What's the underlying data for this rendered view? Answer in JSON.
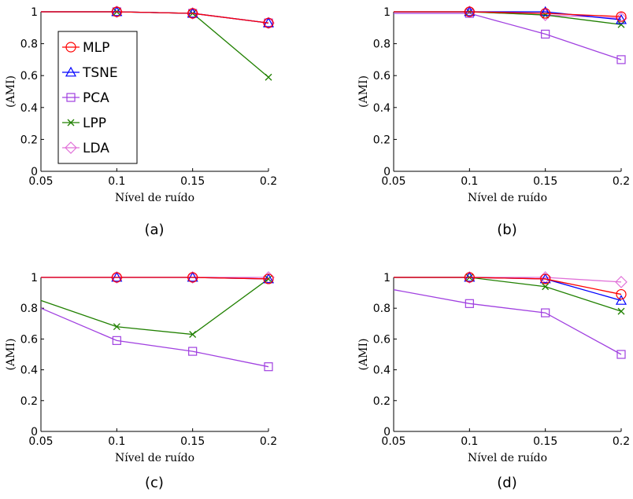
{
  "chart_data": [
    {
      "type": "line",
      "caption": "(a)",
      "xlabel": "Nível de ruído",
      "ylabel": "(AMI)",
      "x": [
        0.05,
        0.1,
        0.15,
        0.2
      ],
      "xticks": [
        "0.05",
        "0.1",
        "0.15",
        "0.2"
      ],
      "yticks": [
        "0",
        "0.2",
        "0.4",
        "0.6",
        "0.8",
        "1"
      ],
      "xlim": [
        0.05,
        0.2
      ],
      "ylim": [
        0,
        1
      ],
      "grid": false,
      "legend": "left",
      "series": [
        {
          "name": "MLP",
          "marker": "circle",
          "color": "#ff0000",
          "values": [
            1.0,
            1.0,
            0.99,
            0.93
          ]
        },
        {
          "name": "TSNE",
          "marker": "triangle",
          "color": "#0000ff",
          "values": [
            1.0,
            1.0,
            0.99,
            0.93
          ]
        },
        {
          "name": "PCA",
          "marker": "square",
          "color": "#a040e0",
          "values": [
            1.0,
            1.0,
            0.99,
            0.93
          ]
        },
        {
          "name": "LPP",
          "marker": "x",
          "color": "#208000",
          "values": [
            1.0,
            1.0,
            0.99,
            0.59
          ]
        },
        {
          "name": "LDA",
          "marker": "diamond",
          "color": "#e070d8",
          "values": [
            1.0,
            1.0,
            0.99,
            0.93
          ]
        }
      ]
    },
    {
      "type": "line",
      "caption": "(b)",
      "xlabel": "Nível de ruído",
      "ylabel": "(AMI)",
      "x": [
        0.05,
        0.1,
        0.15,
        0.2
      ],
      "xticks": [
        "0.05",
        "0.1",
        "0.15",
        "0.2"
      ],
      "yticks": [
        "0",
        "0.2",
        "0.4",
        "0.6",
        "0.8",
        "1"
      ],
      "xlim": [
        0.05,
        0.2
      ],
      "ylim": [
        0,
        1
      ],
      "grid": false,
      "series": [
        {
          "name": "MLP",
          "marker": "circle",
          "color": "#ff0000",
          "values": [
            1.0,
            1.0,
            0.99,
            0.97
          ]
        },
        {
          "name": "TSNE",
          "marker": "triangle",
          "color": "#0000ff",
          "values": [
            1.0,
            1.0,
            1.0,
            0.95
          ]
        },
        {
          "name": "PCA",
          "marker": "square",
          "color": "#a040e0",
          "values": [
            0.99,
            0.99,
            0.86,
            0.7
          ]
        },
        {
          "name": "LPP",
          "marker": "x",
          "color": "#208000",
          "values": [
            1.0,
            1.0,
            0.98,
            0.92
          ]
        },
        {
          "name": "LDA",
          "marker": "diamond",
          "color": "#e070d8",
          "values": [
            1.0,
            1.0,
            0.98,
            0.96
          ]
        }
      ]
    },
    {
      "type": "line",
      "caption": "(c)",
      "xlabel": "Nível de ruído",
      "ylabel": "(AMI)",
      "x": [
        0.05,
        0.1,
        0.15,
        0.2
      ],
      "xticks": [
        "0.05",
        "0.1",
        "0.15",
        "0.2"
      ],
      "yticks": [
        "0",
        "0.2",
        "0.4",
        "0.6",
        "0.8",
        "1"
      ],
      "xlim": [
        0.05,
        0.2
      ],
      "ylim": [
        0,
        1
      ],
      "grid": false,
      "series": [
        {
          "name": "MLP",
          "marker": "circle",
          "color": "#ff0000",
          "values": [
            1.0,
            1.0,
            1.0,
            0.99
          ]
        },
        {
          "name": "TSNE",
          "marker": "triangle",
          "color": "#0000ff",
          "values": [
            1.0,
            1.0,
            1.0,
            0.99
          ]
        },
        {
          "name": "PCA",
          "marker": "square",
          "color": "#a040e0",
          "values": [
            0.8,
            0.59,
            0.52,
            0.42
          ]
        },
        {
          "name": "LPP",
          "marker": "x",
          "color": "#208000",
          "values": [
            0.85,
            0.68,
            0.63,
            0.99
          ]
        },
        {
          "name": "LDA",
          "marker": "diamond",
          "color": "#e070d8",
          "values": [
            1.0,
            1.0,
            1.0,
            1.0
          ]
        }
      ]
    },
    {
      "type": "line",
      "caption": "(d)",
      "xlabel": "Nível de ruído",
      "ylabel": "(AMI)",
      "x": [
        0.05,
        0.1,
        0.15,
        0.2
      ],
      "xticks": [
        "0.05",
        "0.1",
        "0.15",
        "0.2"
      ],
      "yticks": [
        "0",
        "0.2",
        "0.4",
        "0.6",
        "0.8",
        "1"
      ],
      "xlim": [
        0.05,
        0.2
      ],
      "ylim": [
        0,
        1
      ],
      "grid": false,
      "series": [
        {
          "name": "MLP",
          "marker": "circle",
          "color": "#ff0000",
          "values": [
            1.0,
            1.0,
            0.99,
            0.89
          ]
        },
        {
          "name": "TSNE",
          "marker": "triangle",
          "color": "#0000ff",
          "values": [
            1.0,
            1.0,
            0.99,
            0.85
          ]
        },
        {
          "name": "PCA",
          "marker": "square",
          "color": "#a040e0",
          "values": [
            0.92,
            0.83,
            0.77,
            0.5
          ]
        },
        {
          "name": "LPP",
          "marker": "x",
          "color": "#208000",
          "values": [
            1.0,
            1.0,
            0.94,
            0.78
          ]
        },
        {
          "name": "LDA",
          "marker": "diamond",
          "color": "#e070d8",
          "values": [
            1.0,
            1.0,
            1.0,
            0.97
          ]
        }
      ]
    }
  ]
}
